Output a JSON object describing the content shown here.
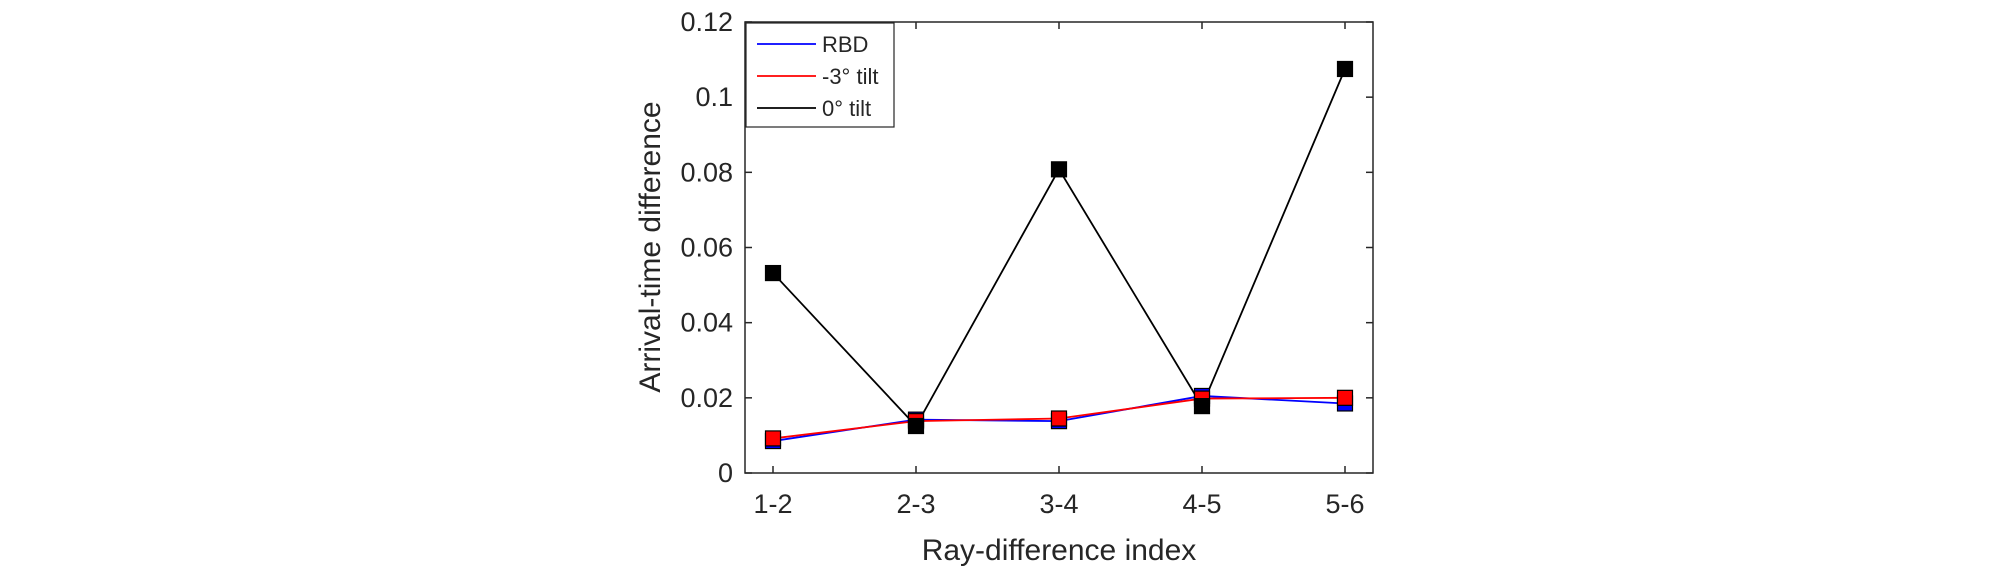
{
  "chart_data": {
    "type": "line",
    "title": "",
    "xlabel": "Ray-difference index",
    "ylabel": "Arrival-time difference",
    "categories": [
      "1-2",
      "2-3",
      "3-4",
      "4-5",
      "5-6"
    ],
    "ylim": [
      0,
      0.12
    ],
    "yticks": [
      0,
      0.02,
      0.04,
      0.06,
      0.08,
      0.1,
      0.12
    ],
    "ytick_labels": [
      "0",
      "0.02",
      "0.04",
      "0.06",
      "0.08",
      "0.1",
      "0.12"
    ],
    "grid": false,
    "legend_position": "top-left",
    "marker": "square",
    "series": [
      {
        "name": "RBD",
        "color": "#0000ff",
        "values": [
          0.0085,
          0.0142,
          0.0138,
          0.0205,
          0.0185
        ]
      },
      {
        "name": "-3° tilt",
        "color": "#ff0000",
        "values": [
          0.0092,
          0.0138,
          0.0145,
          0.0198,
          0.02
        ]
      },
      {
        "name": "0° tilt",
        "color": "#000000",
        "values": [
          0.0532,
          0.0125,
          0.0808,
          0.0178,
          0.1075
        ]
      }
    ]
  }
}
